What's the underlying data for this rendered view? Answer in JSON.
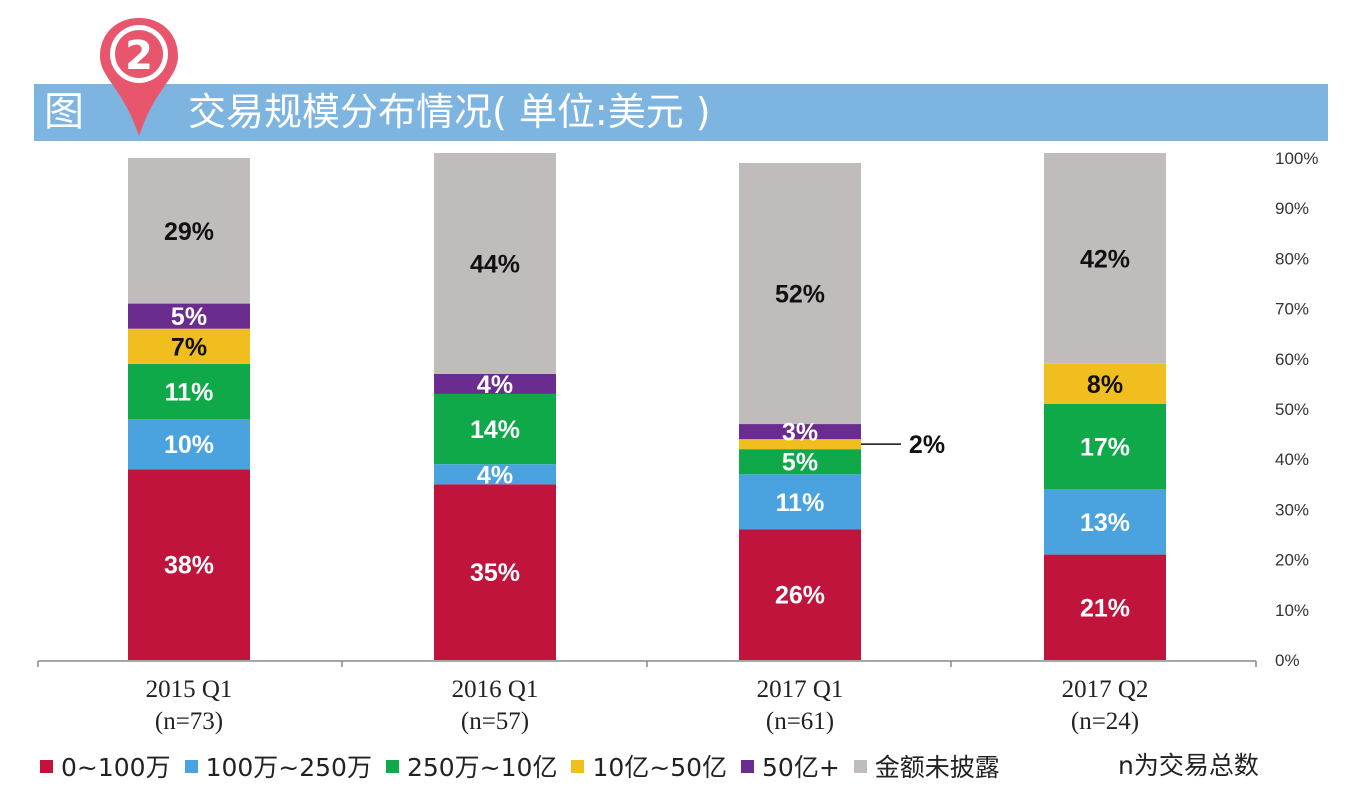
{
  "header": {
    "figure_prefix": "图",
    "figure_number": "2",
    "title": "交易规模分布情况( 单位:美元 )"
  },
  "note": "n为交易总数",
  "colors": {
    "0-1m": "#c0143c",
    "1m-2.5m": "#4aa3df",
    "2.5m-1b": "#0fa94a",
    "1b-5b": "#f0be1e",
    "5b+": "#6b2c8f",
    "undisclosed": "#c0bcbc",
    "header": "#7db4e0",
    "pin": "#e8566e"
  },
  "chart_data": {
    "type": "bar",
    "stacked": true,
    "categories": [
      "2015 Q1",
      "2016 Q1",
      "2017 Q1",
      "2017 Q2"
    ],
    "category_sublabels": [
      "(n=73)",
      "(n=57)",
      "(n=61)",
      "(n=24)"
    ],
    "ylim": [
      0,
      100
    ],
    "yticks": [
      "0%",
      "10%",
      "20%",
      "30%",
      "40%",
      "50%",
      "60%",
      "70%",
      "80%",
      "90%",
      "100%"
    ],
    "y_axis_side": "right",
    "legend_position": "bottom",
    "series": [
      {
        "name": "0~100万",
        "color_key": "0-1m",
        "values": [
          38,
          35,
          26,
          21
        ],
        "labels": [
          "38%",
          "35%",
          "26%",
          "21%"
        ]
      },
      {
        "name": "100万~250万",
        "color_key": "1m-2.5m",
        "values": [
          10,
          4,
          11,
          13
        ],
        "labels": [
          "10%",
          "4%",
          "11%",
          "13%"
        ]
      },
      {
        "name": "250万~10亿",
        "color_key": "2.5m-1b",
        "values": [
          11,
          14,
          5,
          17
        ],
        "labels": [
          "11%",
          "14%",
          "5%",
          "17%"
        ]
      },
      {
        "name": "10亿~50亿",
        "color_key": "1b-5b",
        "values": [
          7,
          0,
          2,
          8
        ],
        "labels": [
          "7%",
          "",
          "2%",
          "8%"
        ]
      },
      {
        "name": "50亿+",
        "color_key": "5b+",
        "values": [
          5,
          4,
          3,
          0
        ],
        "labels": [
          "5%",
          "4%",
          "3%",
          ""
        ]
      },
      {
        "name": "金额未披露",
        "color_key": "undisclosed",
        "values": [
          29,
          44,
          52,
          42
        ],
        "labels": [
          "29%",
          "44%",
          "52%",
          "42%"
        ]
      }
    ]
  }
}
